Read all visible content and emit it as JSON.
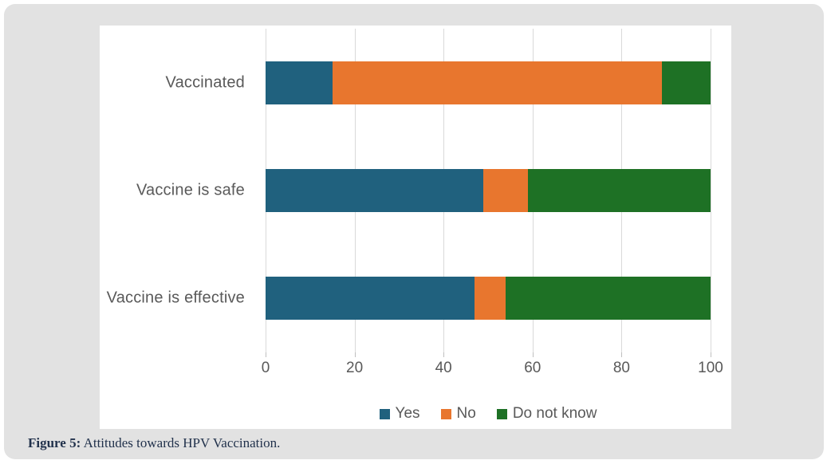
{
  "figure": {
    "caption_prefix": "Figure 5:",
    "caption_text": " Attitudes towards HPV Vaccination."
  },
  "colors": {
    "panel_background": "#e2e2e2",
    "chart_background": "#ffffff",
    "gridline": "#d9d9d9",
    "tick": "#bfbfbf",
    "text_gray": "#595959",
    "caption_navy": "#22324c"
  },
  "chart_data": {
    "type": "bar",
    "orientation": "horizontal",
    "stacked": true,
    "title": "",
    "xlabel": "",
    "ylabel": "",
    "categories": [
      "Vaccinated",
      "Vaccine is safe",
      "Vaccine is effective"
    ],
    "series": [
      {
        "name": "Yes",
        "color": "#20617e",
        "values": [
          15,
          49,
          47
        ]
      },
      {
        "name": "No",
        "color": "#e8762e",
        "values": [
          74,
          10,
          7
        ]
      },
      {
        "name": "Do not know",
        "color": "#1e7125",
        "values": [
          11,
          41,
          46
        ]
      }
    ],
    "xlim": [
      0,
      100
    ],
    "x_tick_labels": [
      "0",
      "20",
      "40",
      "60",
      "80",
      "100"
    ],
    "x_tick_values": [
      0,
      20,
      40,
      60,
      80,
      100
    ],
    "grid": true,
    "legend_position": "bottom"
  }
}
